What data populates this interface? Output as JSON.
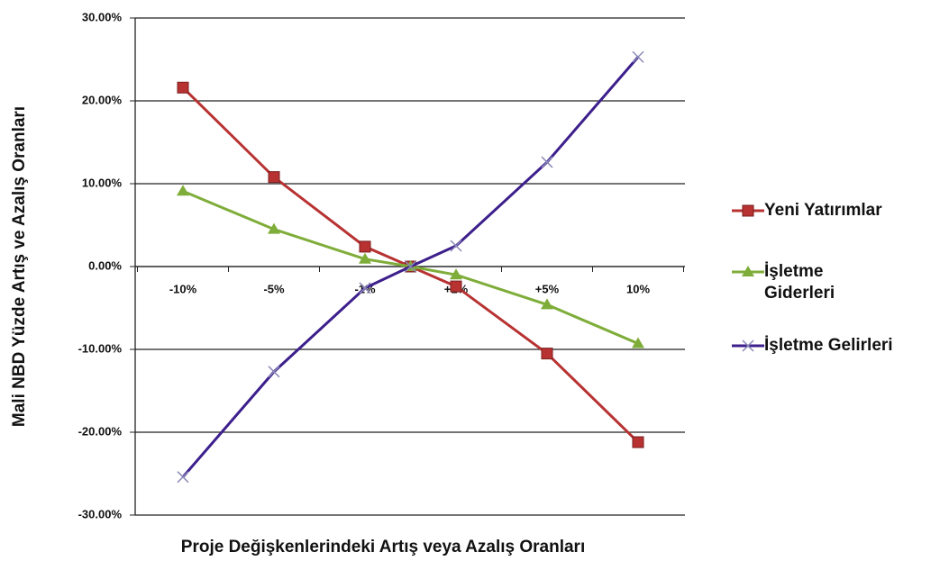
{
  "chart_data": {
    "type": "line",
    "categories": [
      "-10%",
      "-5%",
      "-1%",
      null,
      "+1%",
      "+5%",
      "10%"
    ],
    "series": [
      {
        "name": "Yeni Yatırımlar",
        "color": "#b83232",
        "marker": "square",
        "values": [
          21.6,
          10.8,
          2.4,
          0,
          -2.4,
          -10.5,
          -21.2
        ]
      },
      {
        "name": "İşletme Giderleri",
        "color": "#7fad3a",
        "marker": "triangle",
        "values": [
          9.1,
          4.5,
          0.9,
          0,
          -1.0,
          -4.6,
          -9.3
        ]
      },
      {
        "name": "İşletme Gelirleri",
        "color": "#3d1f8c",
        "marker": "x",
        "values": [
          -25.4,
          -12.7,
          -2.6,
          0,
          2.5,
          12.6,
          25.3
        ]
      }
    ],
    "ylim": [
      -30,
      30
    ],
    "yticks": [
      {
        "value": -30,
        "label": "-30.00%"
      },
      {
        "value": -20,
        "label": "-20.00%"
      },
      {
        "value": -10,
        "label": "-10.00%"
      },
      {
        "value": 0,
        "label": "0.00%"
      },
      {
        "value": 10,
        "label": "10.00%"
      },
      {
        "value": 20,
        "label": "20.00%"
      },
      {
        "value": 30,
        "label": "30.00%"
      }
    ],
    "grid": true,
    "x_label": "Proje Değişkenlerindeki Artış veya Azalış Oranları",
    "y_label": "Mali NBD Yüzde Artış ve Azalış Oranları"
  }
}
